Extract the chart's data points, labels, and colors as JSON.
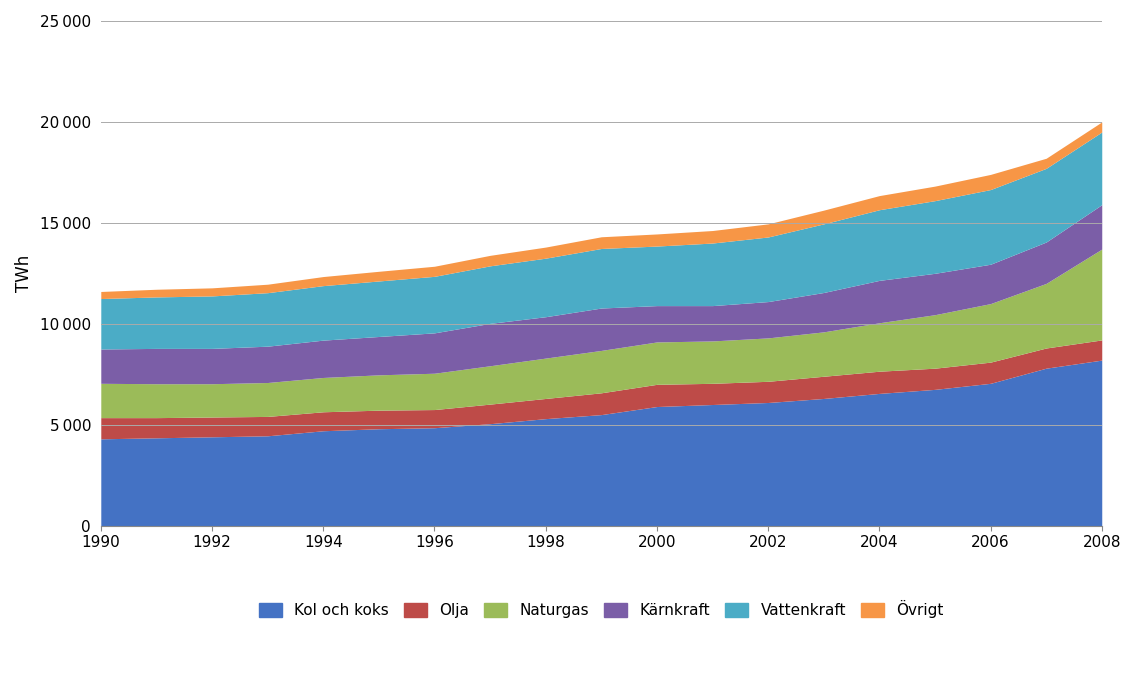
{
  "years": [
    1990,
    1991,
    1992,
    1993,
    1994,
    1995,
    1996,
    1997,
    1998,
    1999,
    2000,
    2001,
    2002,
    2003,
    2004,
    2005,
    2006,
    2007,
    2008
  ],
  "series": {
    "Kol och koks": [
      4300,
      4350,
      4400,
      4450,
      4700,
      4800,
      4850,
      5050,
      5300,
      5500,
      5900,
      6000,
      6100,
      6300,
      6550,
      6750,
      7050,
      7800,
      8200
    ],
    "Olja": [
      1050,
      1000,
      980,
      960,
      940,
      920,
      900,
      970,
      1000,
      1080,
      1100,
      1050,
      1050,
      1100,
      1100,
      1050,
      1050,
      1000,
      1000
    ],
    "Naturgas": [
      1700,
      1680,
      1650,
      1680,
      1700,
      1750,
      1800,
      1900,
      2000,
      2100,
      2100,
      2100,
      2150,
      2200,
      2400,
      2650,
      2900,
      3200,
      4500
    ],
    "Kärnkraft": [
      1700,
      1750,
      1750,
      1800,
      1850,
      1900,
      2000,
      2100,
      2050,
      2100,
      1800,
      1750,
      1800,
      1950,
      2100,
      2050,
      1950,
      2050,
      2200
    ],
    "Vattenkraft": [
      2500,
      2550,
      2600,
      2650,
      2700,
      2750,
      2800,
      2850,
      2900,
      2950,
      2950,
      3100,
      3200,
      3400,
      3500,
      3600,
      3700,
      3650,
      3600
    ],
    "Övrigt": [
      350,
      380,
      400,
      420,
      450,
      480,
      500,
      520,
      550,
      580,
      600,
      620,
      650,
      680,
      700,
      720,
      750,
      500,
      500
    ]
  },
  "colors": {
    "Kol och koks": "#4472C4",
    "Olja": "#BE4B48",
    "Naturgas": "#9BBB59",
    "Kärnkraft": "#7B5EA7",
    "Vattenkraft": "#4BACC6",
    "Övrigt": "#F79646"
  },
  "ylabel": "TWh",
  "ylim": [
    0,
    25000
  ],
  "yticks": [
    0,
    5000,
    10000,
    15000,
    20000,
    25000
  ],
  "xlim": [
    1990,
    2008
  ],
  "xticks": [
    1990,
    1992,
    1994,
    1996,
    1998,
    2000,
    2002,
    2004,
    2006,
    2008
  ],
  "grid_color": "#AAAAAA",
  "background_color": "#FFFFFF",
  "legend_order": [
    "Kol och koks",
    "Olja",
    "Naturgas",
    "Kärnkraft",
    "Vattenkraft",
    "Övrigt"
  ]
}
